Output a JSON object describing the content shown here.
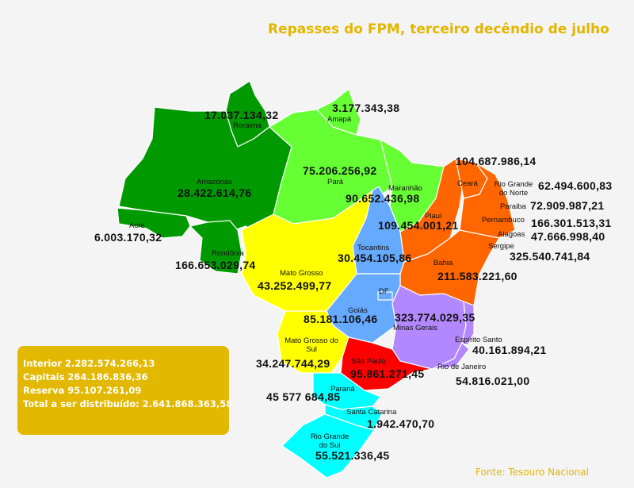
{
  "title": "Repasses do FPM, terceiro decêndio de julho",
  "source": "Fonte: Tesouro Nacional",
  "summary": {
    "interior": "Interior 2.282.574.266,13",
    "capitais": "Capitais 264.186.836,36",
    "reserva": "Reserva 95.107.261,09",
    "total": "Total a ser distribuído: 2.641.868.363,58"
  },
  "colors": {
    "title": "#e3b600",
    "summary_box": "#e2b800",
    "norte_dark_green": "#009a00",
    "norte_light_green": "#66ff33",
    "nordeste_orange": "#ff6600",
    "centro_oeste_yellow": "#ffff00",
    "centro_oeste_blue": "#66aaff",
    "sudeste_purple": "#b388ff",
    "sao_paulo_red": "#ff0000",
    "sul_cyan": "#00ffff"
  },
  "states": {
    "roraima": {
      "name": "Roraima",
      "value": "17.037.134,32"
    },
    "amapa": {
      "name": "Amapá",
      "value": "3.177.343,38"
    },
    "amazonas": {
      "name": "Amazonas",
      "value": "28.422.614,76"
    },
    "para": {
      "name": "Pará",
      "value": "75.206.256,92"
    },
    "maranhao": {
      "name": "Maranhão",
      "value": "90.652.436,98"
    },
    "acre": {
      "name": "Acre",
      "value": "6.003.170,32"
    },
    "rondonia": {
      "name": "Rondônia",
      "value": "166.653.029,74"
    },
    "ceara": {
      "name": "Ceará",
      "value": "104.687.986,14"
    },
    "rio_grande_do_norte": {
      "name": "Rio Grande do Norte",
      "value": "62.494.600,83"
    },
    "paraiba": {
      "name": "Paraiba",
      "value": "72.909.987,21"
    },
    "pernambuco": {
      "name": "Pernambuco",
      "value": "166.301.513,31"
    },
    "alagoas": {
      "name": "Alagoas",
      "value": "47.666.998,40"
    },
    "sergipe": {
      "name": "Sergipe",
      "value": "325.540.741,84"
    },
    "piaui": {
      "name": "Piauí",
      "value": "109.454.001,21"
    },
    "tocantins": {
      "name": "Tocantins",
      "value": "30.454.105,86"
    },
    "bahia": {
      "name": "Bahia",
      "value": "211.583.221,60"
    },
    "mato_grosso": {
      "name": "Mato Grosso",
      "value": "43.252.499,77"
    },
    "df": {
      "name": "DF"
    },
    "goias": {
      "name": "Goiás",
      "value": "85.181.106,46"
    },
    "minas_gerais": {
      "name": "Minas Gerais",
      "value": "323.774.029,35"
    },
    "espirito_santo": {
      "name": "Espírito Santo",
      "value": "40.161.894,21"
    },
    "mato_grosso_do_sul": {
      "name": "Mato Grosso do Sul",
      "value": "34.247.744,29"
    },
    "sao_paulo": {
      "name": "São Paulo",
      "value": "95.861.271,45"
    },
    "rio_de_janeiro": {
      "name": "Rio de Janeiro",
      "value": "54.816.021,00"
    },
    "parana": {
      "name": "Paraná",
      "value": "45 577 684,85"
    },
    "santa_catarina": {
      "name": "Santa Catarina",
      "value": "1.942.470,70"
    },
    "rio_grande_do_sul": {
      "name": "Rio Grande do Sul",
      "value": "55.521.336,45"
    }
  }
}
